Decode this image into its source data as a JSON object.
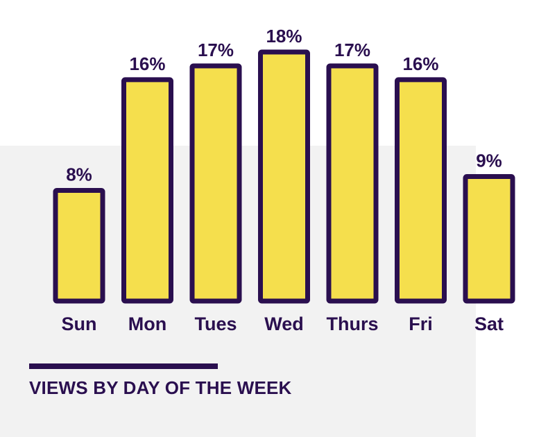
{
  "colors": {
    "bar_fill": "#f5df4d",
    "bar_stroke": "#2a0f4f",
    "text": "#2a0f4f",
    "panel_bg": "#f2f2f2"
  },
  "chart_data": {
    "type": "bar",
    "title": "VIEWS BY DAY OF THE WEEK",
    "categories": [
      "Sun",
      "Mon",
      "Tues",
      "Wed",
      "Thurs",
      "Fri",
      "Sat"
    ],
    "values": [
      8,
      16,
      17,
      18,
      17,
      16,
      9
    ],
    "value_labels": [
      "8%",
      "16%",
      "17%",
      "18%",
      "17%",
      "16%",
      "9%"
    ],
    "unit": "%",
    "ylim": [
      0,
      18
    ],
    "grid": false,
    "legend": "none"
  }
}
